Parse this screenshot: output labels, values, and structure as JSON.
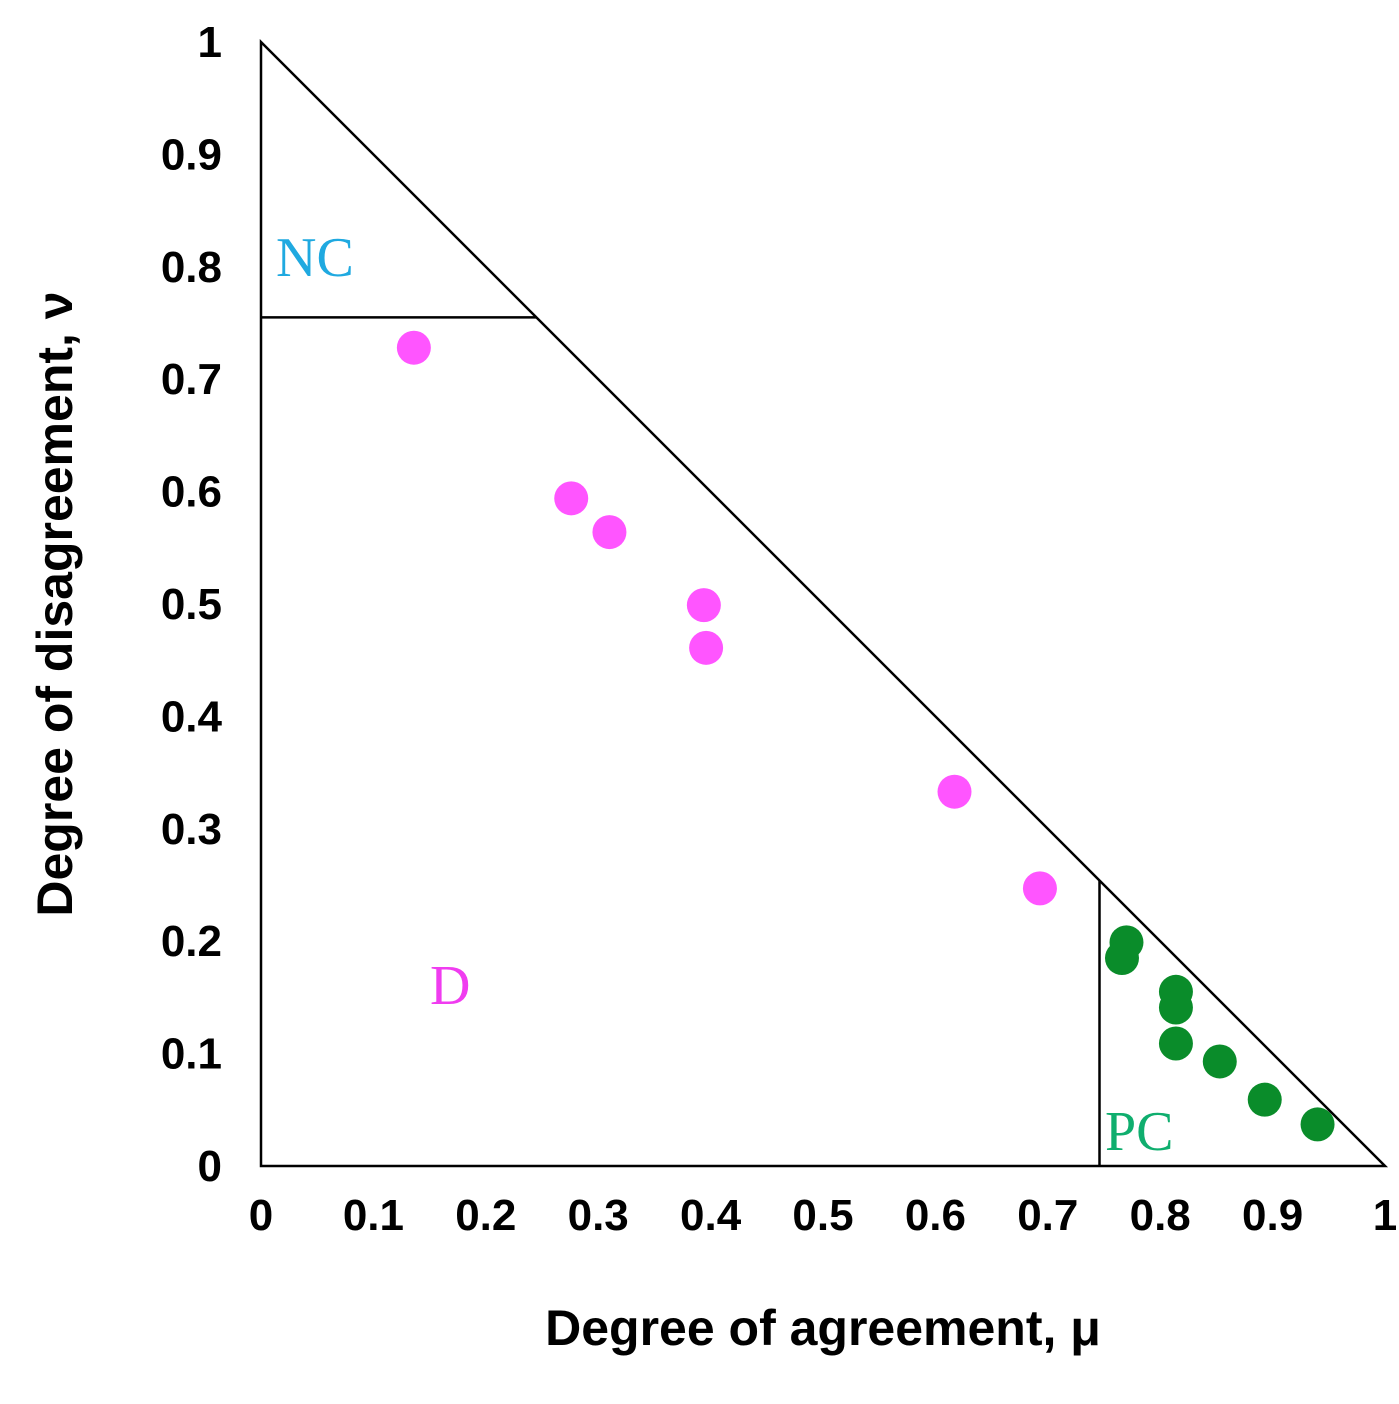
{
  "chart_data": {
    "type": "scatter",
    "xlabel": "Degree of agreement, μ",
    "ylabel": "Degree of disagreement, ν",
    "xlim": [
      0,
      1
    ],
    "ylim": [
      0,
      1
    ],
    "xticks": [
      0,
      0.1,
      0.2,
      0.3,
      0.4,
      0.5,
      0.6,
      0.7,
      0.8,
      0.9,
      1
    ],
    "yticks": [
      0,
      0.1,
      0.2,
      0.3,
      0.4,
      0.5,
      0.6,
      0.7,
      0.8,
      0.9,
      1
    ],
    "grid": false,
    "nc_boundary": 0.755,
    "pc_boundary": 0.746,
    "annotations": [
      {
        "text": "NC",
        "color": "#1fa9e0"
      },
      {
        "text": "D",
        "color": "#f03cf0"
      },
      {
        "text": "PC",
        "color": "#0fae6e"
      }
    ],
    "series": [
      {
        "color": "#ff55ff",
        "x": [
          0.136,
          0.276,
          0.31,
          0.394,
          0.396,
          0.617,
          0.693
        ],
        "values": [
          0.728,
          0.594,
          0.564,
          0.499,
          0.461,
          0.333,
          0.247
        ]
      },
      {
        "color": "#0a8c2a",
        "x": [
          0.77,
          0.766,
          0.814,
          0.814,
          0.814,
          0.853,
          0.893,
          0.94
        ],
        "values": [
          0.199,
          0.185,
          0.155,
          0.141,
          0.109,
          0.093,
          0.059,
          0.037
        ]
      }
    ]
  }
}
